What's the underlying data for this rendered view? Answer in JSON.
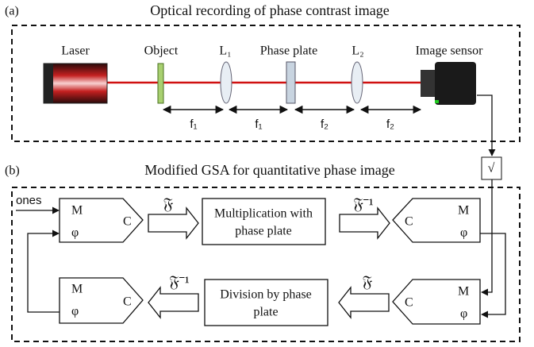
{
  "panel_a": {
    "label": "(a)",
    "title": "Optical recording of phase contrast image",
    "components": [
      "Laser",
      "Object",
      "L₁",
      "Phase plate",
      "L₂",
      "Image sensor"
    ],
    "distances": [
      "f₁",
      "f₁",
      "f₂",
      "f₂"
    ]
  },
  "panel_b": {
    "label": "(b)",
    "title": "Modified GSA for quantitative phase image",
    "sqrt": "√",
    "input": "ones",
    "blocks": [
      {
        "m": "M",
        "phi": "φ",
        "c": "C"
      },
      {
        "m": "M",
        "phi": "φ",
        "c": "C"
      },
      {
        "m": "M",
        "phi": "φ",
        "c": "C"
      },
      {
        "m": "M",
        "phi": "φ",
        "c": "C"
      }
    ],
    "transforms": [
      "𝔉",
      "𝔉⁻¹",
      "𝔉⁻¹",
      "𝔉"
    ],
    "boxes": [
      [
        "Multiplication with",
        "phase plate"
      ],
      [
        "Division by phase",
        "plate"
      ]
    ]
  }
}
